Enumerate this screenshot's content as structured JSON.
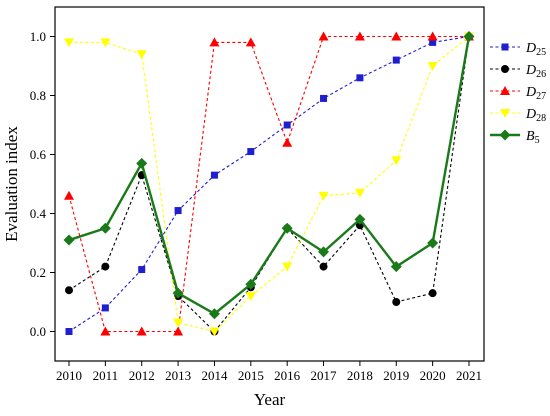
{
  "chart_data": {
    "type": "line",
    "title": "",
    "xlabel": "Year",
    "ylabel": "Evaluation index",
    "categories": [
      "2010",
      "2011",
      "2012",
      "2013",
      "2014",
      "2015",
      "2016",
      "2017",
      "2018",
      "2019",
      "2020",
      "2021"
    ],
    "ylim": [
      -0.1,
      1.1
    ],
    "yticks": [
      "0.0",
      "0.2",
      "0.4",
      "0.6",
      "0.8",
      "1.0"
    ],
    "ytick_values": [
      0.0,
      0.2,
      0.4,
      0.6,
      0.8,
      1.0
    ],
    "grid": false,
    "legend_position": "top-right",
    "series": [
      {
        "name": "D25",
        "label_main": "D",
        "label_sub": "25",
        "color": "#1f1fd0",
        "marker": "square",
        "line_style": "dashed",
        "values": [
          0.0,
          0.08,
          0.21,
          0.41,
          0.53,
          0.61,
          0.7,
          0.79,
          0.86,
          0.92,
          0.98,
          1.0
        ]
      },
      {
        "name": "D26",
        "label_main": "D",
        "label_sub": "26",
        "color": "#000000",
        "marker": "circle",
        "line_style": "dashed",
        "values": [
          0.14,
          0.22,
          0.53,
          0.12,
          0.0,
          0.15,
          0.35,
          0.22,
          0.36,
          0.1,
          0.13,
          1.0
        ]
      },
      {
        "name": "D27",
        "label_main": "D",
        "label_sub": "27",
        "color": "#ff0000",
        "marker": "triangle-up",
        "line_style": "dashed",
        "values": [
          0.46,
          0.0,
          0.0,
          0.0,
          0.98,
          0.98,
          0.64,
          1.0,
          1.0,
          1.0,
          1.0,
          1.0
        ]
      },
      {
        "name": "D28",
        "label_main": "D",
        "label_sub": "28",
        "color": "#ffff00",
        "marker": "triangle-down",
        "line_style": "dashed",
        "values": [
          0.98,
          0.98,
          0.94,
          0.03,
          0.0,
          0.12,
          0.22,
          0.46,
          0.47,
          0.58,
          0.9,
          1.0
        ]
      },
      {
        "name": "B5",
        "label_main": "B",
        "label_sub": "5",
        "color": "#1a7a1a",
        "marker": "diamond",
        "line_style": "solid",
        "values": [
          0.31,
          0.35,
          0.57,
          0.13,
          0.06,
          0.16,
          0.35,
          0.27,
          0.38,
          0.22,
          0.3,
          1.0
        ]
      }
    ]
  }
}
